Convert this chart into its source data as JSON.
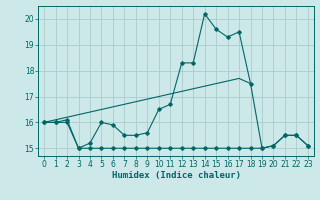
{
  "xlabel": "Humidex (Indice chaleur)",
  "bg_color": "#cce8e8",
  "grid_color": "#aacccc",
  "line_color": "#006666",
  "xlim": [
    -0.5,
    23.5
  ],
  "ylim": [
    14.7,
    20.5
  ],
  "yticks": [
    15,
    16,
    17,
    18,
    19,
    20
  ],
  "xticks": [
    0,
    1,
    2,
    3,
    4,
    5,
    6,
    7,
    8,
    9,
    10,
    11,
    12,
    13,
    14,
    15,
    16,
    17,
    18,
    19,
    20,
    21,
    22,
    23
  ],
  "series1_x": [
    0,
    1,
    2,
    3,
    4,
    5,
    6,
    7,
    8,
    9,
    10,
    11,
    12,
    13,
    14,
    15,
    16,
    17,
    18,
    19,
    20,
    21,
    22,
    23
  ],
  "series1_y": [
    16.0,
    16.0,
    16.0,
    15.0,
    15.2,
    16.0,
    15.9,
    15.5,
    15.5,
    15.6,
    16.5,
    16.7,
    18.3,
    18.3,
    20.2,
    19.6,
    19.3,
    19.5,
    17.5,
    15.0,
    15.1,
    15.5,
    15.5,
    15.1
  ],
  "series2_x": [
    0,
    1,
    2,
    3,
    4,
    5,
    6,
    7,
    8,
    9,
    10,
    11,
    12,
    13,
    14,
    15,
    16,
    17,
    18,
    19,
    20,
    21,
    22,
    23
  ],
  "series2_y": [
    16.0,
    16.0,
    16.1,
    15.0,
    15.0,
    15.0,
    15.0,
    15.0,
    15.0,
    15.0,
    15.0,
    15.0,
    15.0,
    15.0,
    15.0,
    15.0,
    15.0,
    15.0,
    15.0,
    15.0,
    15.1,
    15.5,
    15.5,
    15.1
  ],
  "series3_x": [
    0,
    1,
    2,
    3,
    4,
    5,
    6,
    7,
    8,
    9,
    10,
    11,
    12,
    13,
    14,
    15,
    16,
    17,
    18
  ],
  "series3_y": [
    16.0,
    16.1,
    16.2,
    16.3,
    16.4,
    16.5,
    16.6,
    16.7,
    16.8,
    16.9,
    17.0,
    17.1,
    17.2,
    17.3,
    17.4,
    17.5,
    17.6,
    17.7,
    17.5
  ]
}
